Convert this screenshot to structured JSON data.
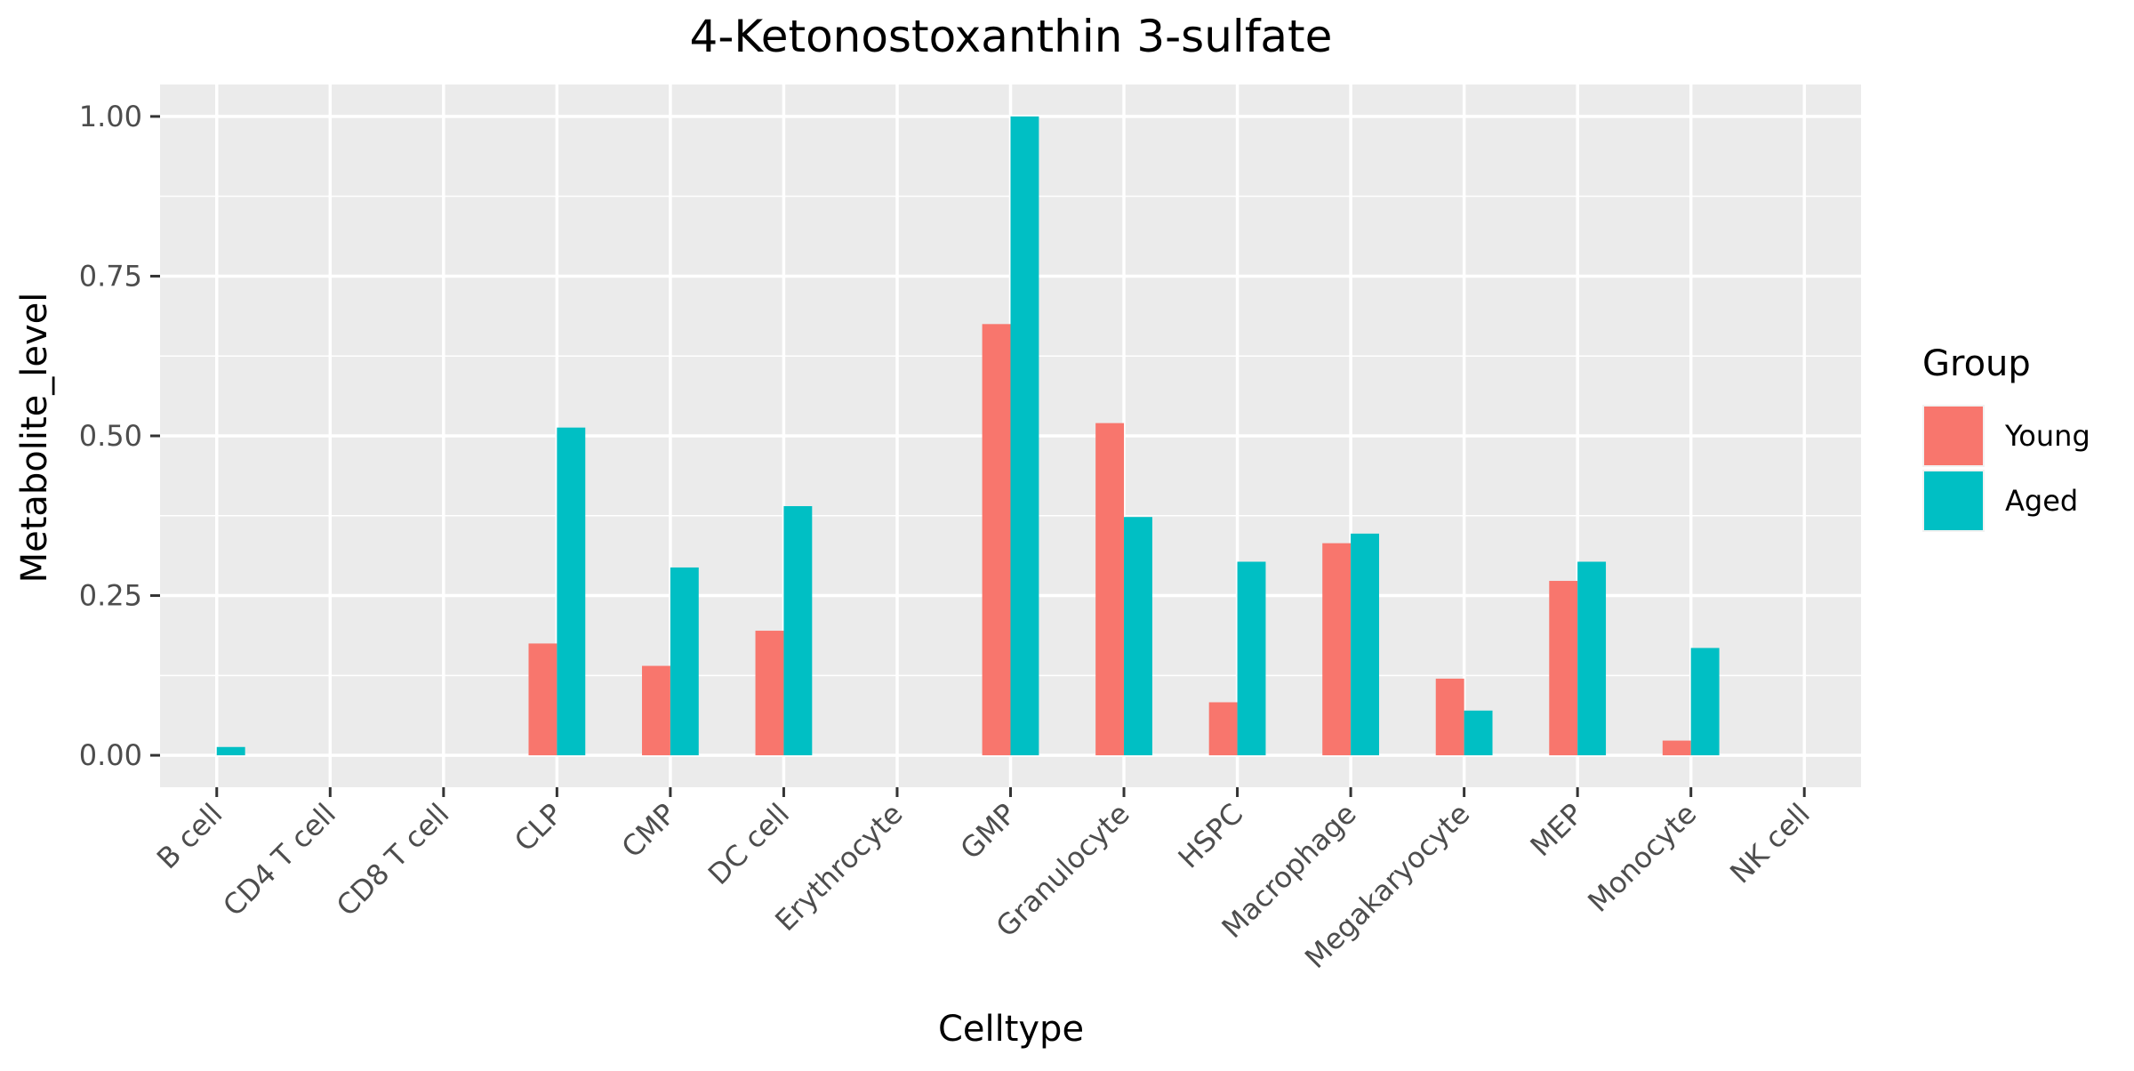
{
  "chart_data": {
    "type": "bar",
    "title": "4-Ketonostoxanthin 3-sulfate",
    "xlabel": "Celltype",
    "ylabel": "Metabolite_level",
    "categories": [
      "B cell",
      "CD4 T cell",
      "CD8 T cell",
      "CLP",
      "CMP",
      "DC cell",
      "Erythrocyte",
      "GMP",
      "Granulocyte",
      "HSPC",
      "Macrophage",
      "Megakaryocyte",
      "MEP",
      "Monocyte",
      "NK cell"
    ],
    "series": [
      {
        "name": "Young",
        "color": "#F8766D",
        "values": [
          0,
          0,
          0,
          0.175,
          0.14,
          0.195,
          0,
          0.675,
          0.52,
          0.083,
          0.332,
          0.12,
          0.273,
          0.023,
          0
        ]
      },
      {
        "name": "Aged",
        "color": "#00BFC4",
        "values": [
          0.013,
          0,
          0,
          0.513,
          0.294,
          0.39,
          0,
          1.0,
          0.373,
          0.303,
          0.347,
          0.07,
          0.303,
          0.168,
          0
        ]
      }
    ],
    "ylim": [
      -0.05,
      1.05
    ],
    "yticks": [
      0,
      0.25,
      0.5,
      0.75,
      1
    ],
    "ytick_labels": [
      "0.00",
      "0.25",
      "0.50",
      "0.75",
      "1.00"
    ],
    "grid": true,
    "legend": {
      "title": "Group",
      "position": "right"
    }
  }
}
